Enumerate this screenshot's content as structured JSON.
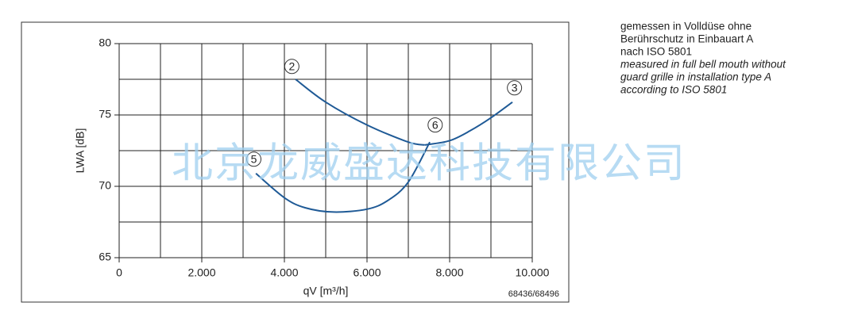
{
  "chart_data": {
    "type": "line",
    "x_label": "qV [m³/h]",
    "y_label": "LWA [dB]",
    "drawing_number": "68436/68496",
    "watermark": "北京龙威盛达科技有限公司",
    "notes": [
      "gemessen in Volldüse ohne",
      "Berührschutz in Einbauart A",
      "nach ISO 5801",
      "measured in full bell mouth without",
      "guard grille in installation type A",
      "according to ISO 5801"
    ],
    "xlim": [
      0,
      10000
    ],
    "ylim": [
      65,
      80
    ],
    "xticks": [
      0,
      {
        "value": 2000,
        "label": "2.000"
      },
      {
        "value": 4000,
        "label": "4.000"
      },
      {
        "value": 6000,
        "label": "6.000"
      },
      {
        "value": 8000,
        "label": "8.000"
      },
      {
        "value": 10000,
        "label": "10.000"
      }
    ],
    "yticks": [
      65,
      70,
      75,
      80
    ],
    "x_gridlines": [
      1000,
      3000,
      5000,
      7000,
      9000
    ],
    "y_gridlines": [
      67.5,
      72.5,
      77.5
    ],
    "grid": true,
    "series": [
      {
        "name": "2",
        "color": "#1f5a96",
        "x": [
          4270,
          5000,
          6000,
          7000,
          7400
        ],
        "values": [
          77.5,
          75.9,
          74.3,
          73.1,
          72.9
        ]
      },
      {
        "name": "3",
        "color": "#1f5a96",
        "x": [
          7400,
          8000,
          8500,
          9000,
          9520
        ],
        "values": [
          72.9,
          73.2,
          73.9,
          74.8,
          75.9
        ]
      },
      {
        "name": "5",
        "color": "#1f5a96",
        "x": [
          3310,
          4000,
          4500,
          5190,
          6000,
          6500,
          7000,
          7520
        ],
        "values": [
          70.9,
          69.2,
          68.5,
          68.2,
          68.4,
          69.0,
          70.3,
          73.1
        ]
      }
    ],
    "curve_labels": [
      {
        "text": "2",
        "x": 4180,
        "y": 78.4
      },
      {
        "text": "3",
        "x": 9570,
        "y": 76.9
      },
      {
        "text": "5",
        "x": 3260,
        "y": 71.9
      },
      {
        "text": "6",
        "x": 7650,
        "y": 74.3
      }
    ]
  }
}
